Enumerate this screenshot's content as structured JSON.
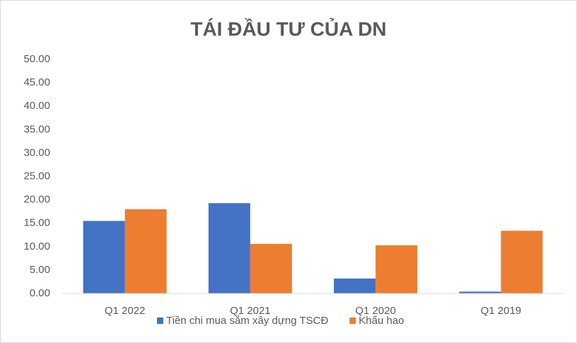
{
  "chart_data": {
    "type": "bar",
    "title": "TÁI ĐẦU TƯ CỦA DN",
    "categories": [
      "Q1 2022",
      "Q1 2021",
      "Q1 2020",
      "Q1 2019"
    ],
    "series": [
      {
        "name": "Tiền chi mua sắm xây dựng TSCĐ",
        "color": "#4472c4",
        "values": [
          15.5,
          19.3,
          3.2,
          0.4
        ]
      },
      {
        "name": "Khấu hao",
        "color": "#ed7d31",
        "values": [
          18.0,
          10.6,
          10.3,
          13.4
        ]
      }
    ],
    "ylim": [
      0,
      50
    ],
    "yticks": [
      {
        "value": 0,
        "label": "0.00"
      },
      {
        "value": 5,
        "label": "5.00"
      },
      {
        "value": 10,
        "label": "10.00"
      },
      {
        "value": 15,
        "label": "15.00"
      },
      {
        "value": 20,
        "label": "20.00"
      },
      {
        "value": 25,
        "label": "25.00"
      },
      {
        "value": 30,
        "label": "30.00"
      },
      {
        "value": 35,
        "label": "35.00"
      },
      {
        "value": 40,
        "label": "40.00"
      },
      {
        "value": 45,
        "label": "45.00"
      },
      {
        "value": 50,
        "label": "50.00"
      }
    ],
    "grid": false,
    "legend": "bottom"
  }
}
